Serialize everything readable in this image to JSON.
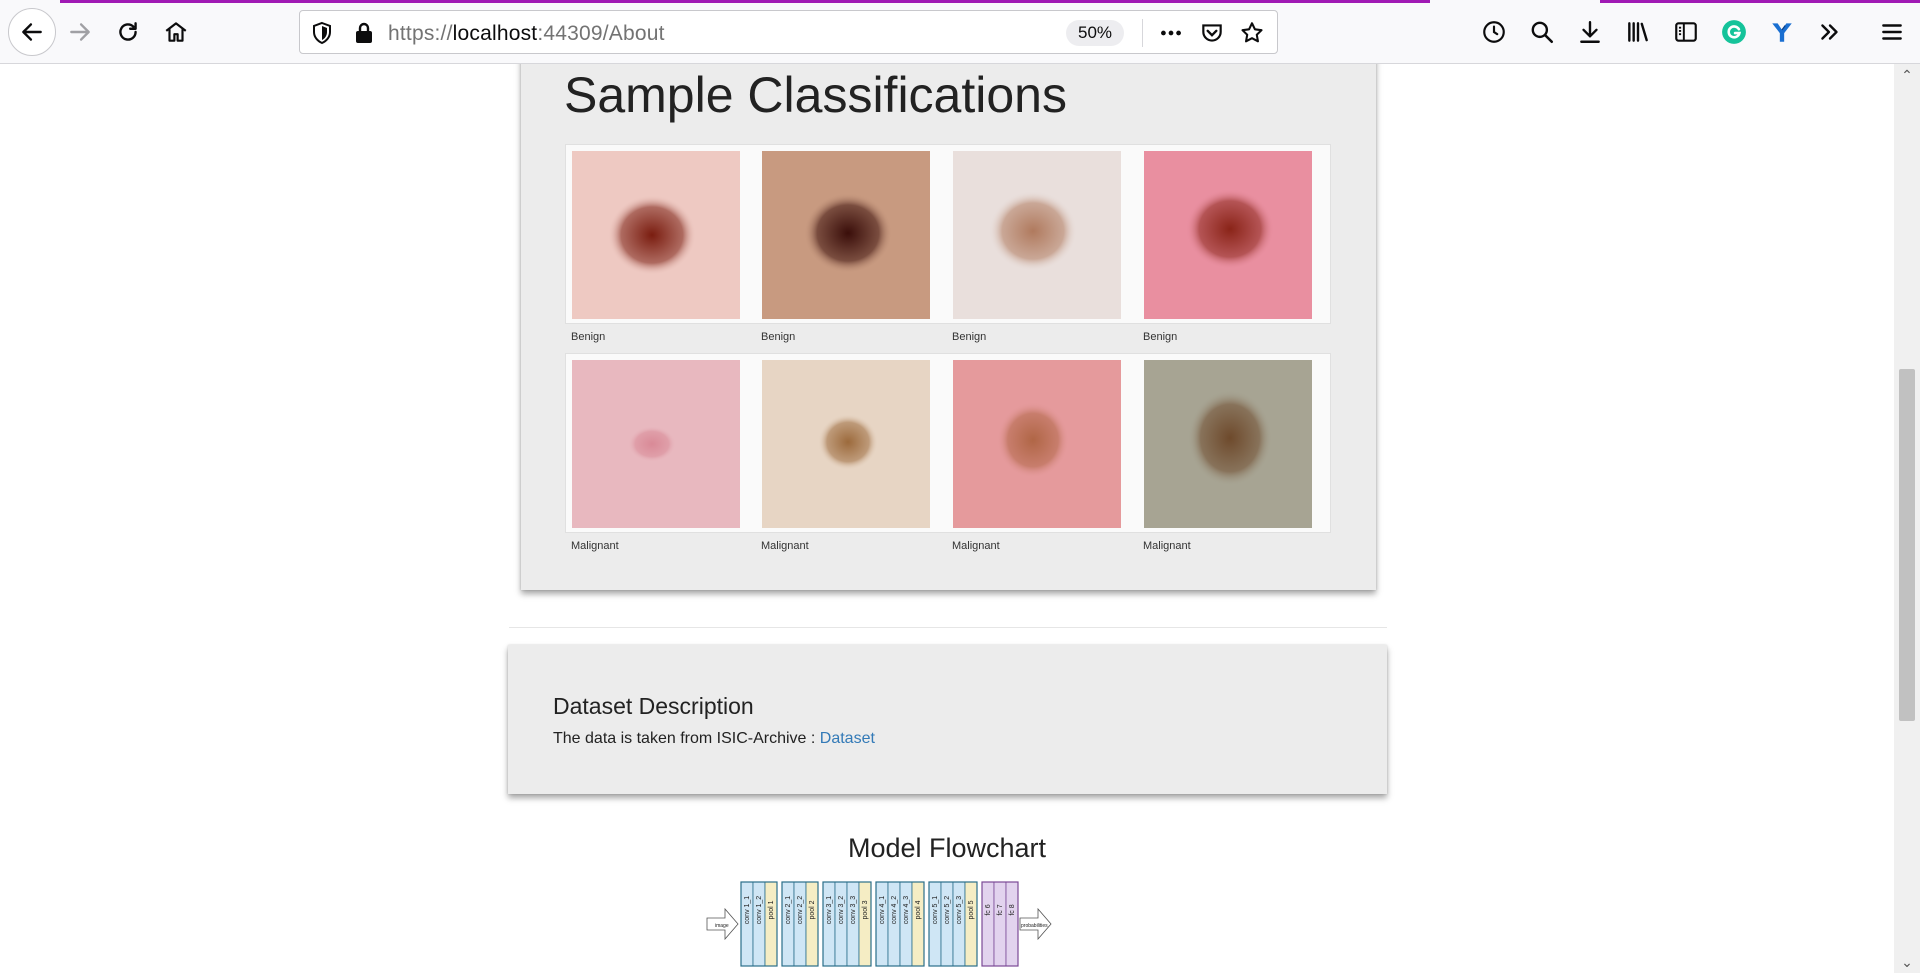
{
  "browser": {
    "url_prefix": "https://",
    "url_host": "localhost",
    "url_rest": ":44309/About",
    "zoom": "50%",
    "accent_color": "#a01ab4",
    "toolbar_icons": [
      "back-arrow-icon",
      "forward-arrow-icon",
      "reload-icon",
      "home-icon",
      "tracking-shield-icon",
      "lock-icon",
      "more-dots-icon",
      "pocket-icon",
      "bookmark-star-icon",
      "history-clock-icon",
      "search-icon",
      "downloads-icon",
      "library-icon",
      "sidebar-icon",
      "grammarly-icon",
      "extension-icon",
      "overflow-chevron-icon",
      "hamburger-menu-icon"
    ]
  },
  "samples": {
    "title": "Sample Classifications",
    "row1": [
      {
        "label": "Benign",
        "bg": "#eec9c2",
        "lesion": "#7a1d10"
      },
      {
        "label": "Benign",
        "bg": "#c89a80",
        "lesion": "#3a0e0a"
      },
      {
        "label": "Benign",
        "bg": "#e9dfdc",
        "lesion": "#b07a5e"
      },
      {
        "label": "Benign",
        "bg": "#e98fa0",
        "lesion": "#8a2418"
      }
    ],
    "row2": [
      {
        "label": "Malignant",
        "bg": "#e8b8bf",
        "lesion": "#d98a97"
      },
      {
        "label": "Malignant",
        "bg": "#e7d5c4",
        "lesion": "#9c6a3c"
      },
      {
        "label": "Malignant",
        "bg": "#e59a9c",
        "lesion": "#b06646"
      },
      {
        "label": "Malignant",
        "bg": "#a7a493",
        "lesion": "#6e4a2c"
      }
    ]
  },
  "dataset": {
    "title": "Dataset Description",
    "text": "The data is taken from ISIC-Archive : ",
    "link": "Dataset"
  },
  "flowchart": {
    "title": "Model Flowchart",
    "input_label": "image",
    "output_label": "probabilities",
    "blocks": [
      {
        "layers": [
          "conv 1_1",
          "conv 1_2"
        ],
        "pool": "pool 1"
      },
      {
        "layers": [
          "conv 2_1",
          "conv 2_2"
        ],
        "pool": "pool 2"
      },
      {
        "layers": [
          "conv 3_1",
          "conv 3_2",
          "conv 3_3"
        ],
        "pool": "pool 3"
      },
      {
        "layers": [
          "conv 4_1",
          "conv 4_2",
          "conv 4_3"
        ],
        "pool": "pool 4"
      },
      {
        "layers": [
          "conv 5_1",
          "conv 5_2",
          "conv 5_3"
        ],
        "pool": "pool 5"
      }
    ],
    "fc": [
      "fc 6",
      "fc 7",
      "fc 8"
    ],
    "colors": {
      "conv": "#cfe6f5",
      "pool": "#f5edc4",
      "fc": "#e2d3ee",
      "border": "#2a6f8a",
      "fc_border": "#7b4a96"
    }
  }
}
